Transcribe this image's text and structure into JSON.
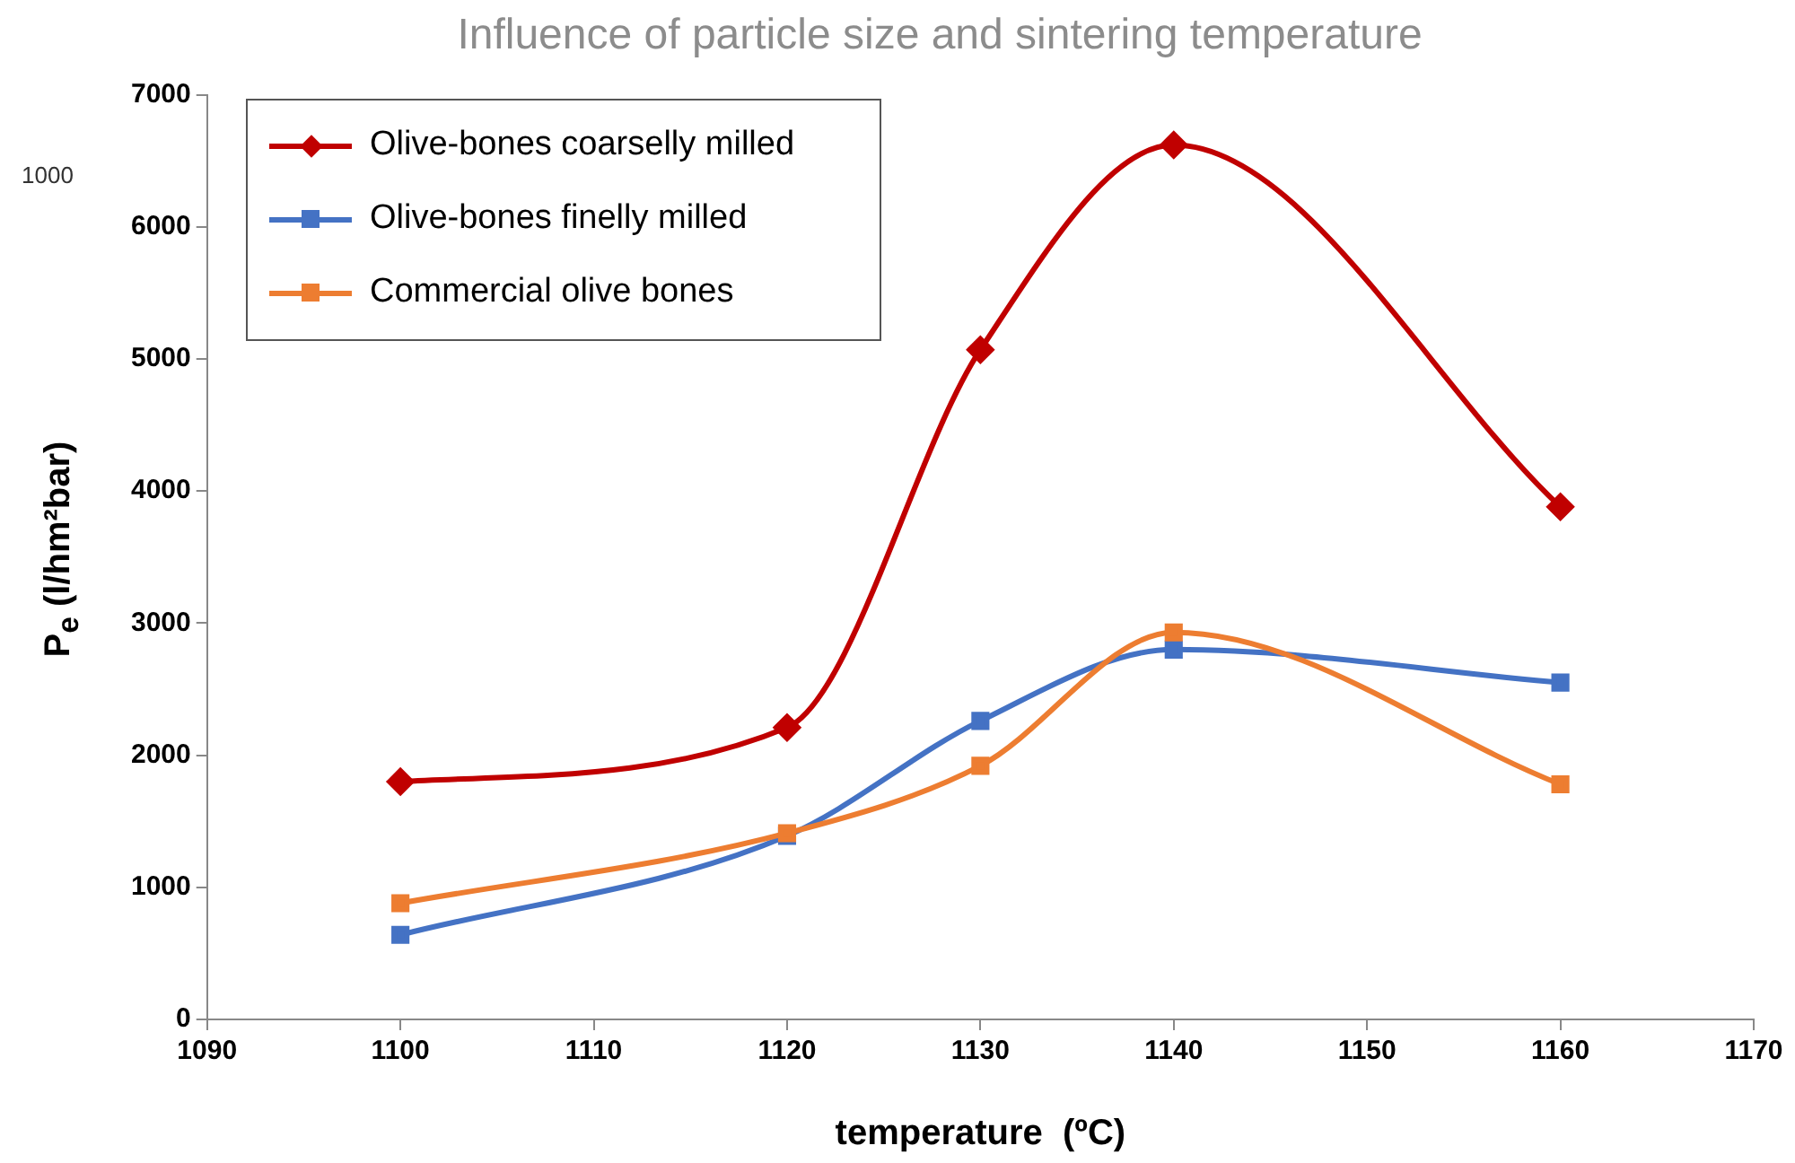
{
  "chart_data": {
    "type": "line",
    "title": "Influence of particle size and sintering temperature",
    "xlabel": "temperature  (ºC)",
    "ylabel": "P$_{e}$ (l/hm²bar)",
    "annotations": [
      "1000"
    ],
    "x": [
      1100,
      1120,
      1130,
      1140,
      1160
    ],
    "series": [
      {
        "name": "Olive-bones coarselly milled",
        "color": "#c00000",
        "marker": "diamond",
        "values": [
          1800,
          2210,
          5070,
          6620,
          3880
        ]
      },
      {
        "name": "Olive-bones finelly milled",
        "color": "#4472c4",
        "marker": "square",
        "values": [
          640,
          1390,
          2260,
          2800,
          2550
        ]
      },
      {
        "name": "Commercial olive bones",
        "color": "#ed7d31",
        "marker": "square",
        "values": [
          880,
          1410,
          1920,
          2930,
          1780
        ]
      }
    ],
    "xlim": [
      1090,
      1170
    ],
    "xticks": [
      1090,
      1100,
      1110,
      1120,
      1130,
      1140,
      1150,
      1160,
      1170
    ],
    "ylim": [
      0,
      7000
    ],
    "yticks": [
      0,
      1000,
      2000,
      3000,
      4000,
      5000,
      6000,
      7000
    ],
    "grid": false,
    "legend": "top left"
  }
}
